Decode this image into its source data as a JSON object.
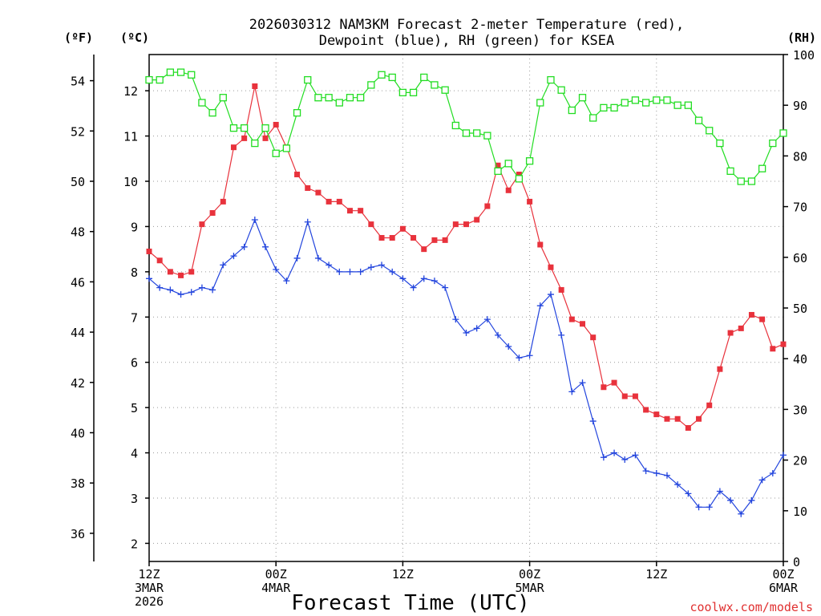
{
  "chart_data": {
    "type": "line",
    "title": [
      "2026030312 NAM3KM Forecast 2-meter Temperature (red),",
      "Dewpoint (blue), RH (green) for KSEA"
    ],
    "xlabel": "Forecast Time (UTC)",
    "credit": "coolwx.com/models",
    "units": {
      "fahrenheit": "(ºF)",
      "celsius": "(ºC)",
      "rh": "(RH)"
    },
    "x_range_hours": [
      0,
      60
    ],
    "y_celsius_range": [
      1.6,
      12.8
    ],
    "rh_range": [
      0,
      100
    ],
    "x_ticks": [
      {
        "hour": 0,
        "lines": [
          "12Z",
          "3MAR",
          "2026"
        ]
      },
      {
        "hour": 12,
        "lines": [
          "00Z",
          "4MAR"
        ]
      },
      {
        "hour": 24,
        "lines": [
          "12Z"
        ]
      },
      {
        "hour": 36,
        "lines": [
          "00Z",
          "5MAR"
        ]
      },
      {
        "hour": 48,
        "lines": [
          "12Z"
        ]
      },
      {
        "hour": 60,
        "lines": [
          "00Z",
          "6MAR"
        ]
      }
    ],
    "celsius_ticks": [
      "2",
      "3",
      "4",
      "5",
      "6",
      "7",
      "8",
      "9",
      "10",
      "11",
      "12"
    ],
    "fahrenheit_ticks": [
      "36",
      "38",
      "40",
      "42",
      "44",
      "46",
      "48",
      "50",
      "52",
      "54"
    ],
    "rh_ticks": [
      "0",
      "10",
      "20",
      "30",
      "40",
      "50",
      "60",
      "70",
      "80",
      "90",
      "100"
    ],
    "series": [
      {
        "name": "Temperature",
        "units": "C",
        "color": "#e8323c",
        "marker": "filled-square",
        "values": [
          8.45,
          8.25,
          8.0,
          7.92,
          8.0,
          9.05,
          9.3,
          9.55,
          10.75,
          10.95,
          12.1,
          10.95,
          11.25,
          10.75,
          10.15,
          9.85,
          9.75,
          9.55,
          9.55,
          9.35,
          9.35,
          9.05,
          8.75,
          8.75,
          8.95,
          8.75,
          8.5,
          8.7,
          8.7,
          9.05,
          9.05,
          9.15,
          9.45,
          10.35,
          9.8,
          10.15,
          9.55,
          8.6,
          8.1,
          7.6,
          6.95,
          6.85,
          6.55,
          5.45,
          5.55,
          5.25,
          5.25,
          4.95,
          4.85,
          4.75,
          4.75,
          4.55,
          4.75,
          5.05,
          5.85,
          6.65,
          6.75,
          7.05,
          6.95,
          6.3,
          6.4
        ]
      },
      {
        "name": "Dewpoint",
        "units": "C",
        "color": "#2244dd",
        "marker": "plus",
        "values": [
          7.85,
          7.65,
          7.6,
          7.5,
          7.55,
          7.65,
          7.6,
          8.15,
          8.35,
          8.55,
          9.15,
          8.55,
          8.05,
          7.8,
          8.3,
          9.1,
          8.3,
          8.15,
          8.0,
          8.0,
          8.0,
          8.1,
          8.15,
          8.0,
          7.85,
          7.65,
          7.85,
          7.8,
          7.65,
          6.95,
          6.65,
          6.75,
          6.95,
          6.6,
          6.35,
          6.1,
          6.15,
          7.25,
          7.5,
          6.6,
          5.35,
          5.55,
          4.7,
          3.9,
          4.0,
          3.85,
          3.95,
          3.6,
          3.55,
          3.5,
          3.3,
          3.1,
          2.8,
          2.8,
          3.15,
          2.95,
          2.65,
          2.95,
          3.4,
          3.55,
          3.95
        ]
      },
      {
        "name": "RH",
        "units": "%",
        "color": "#22dd22",
        "marker": "open-square",
        "values": [
          95,
          95,
          96.5,
          96.5,
          96,
          90.5,
          88.5,
          91.5,
          85.5,
          85.5,
          82.5,
          85.5,
          80.5,
          81.5,
          88.5,
          95,
          91.5,
          91.5,
          90.5,
          91.5,
          91.5,
          94,
          96,
          95.5,
          92.5,
          92.5,
          95.5,
          94,
          93,
          86,
          84.5,
          84.5,
          84,
          77,
          78.5,
          75.5,
          79,
          90.5,
          95,
          93,
          89,
          91.5,
          87.5,
          89.5,
          89.5,
          90.5,
          91,
          90.5,
          91,
          91,
          90,
          90,
          87,
          85,
          82.5,
          77,
          75,
          75,
          77.5,
          82.5,
          84.5
        ]
      }
    ]
  }
}
